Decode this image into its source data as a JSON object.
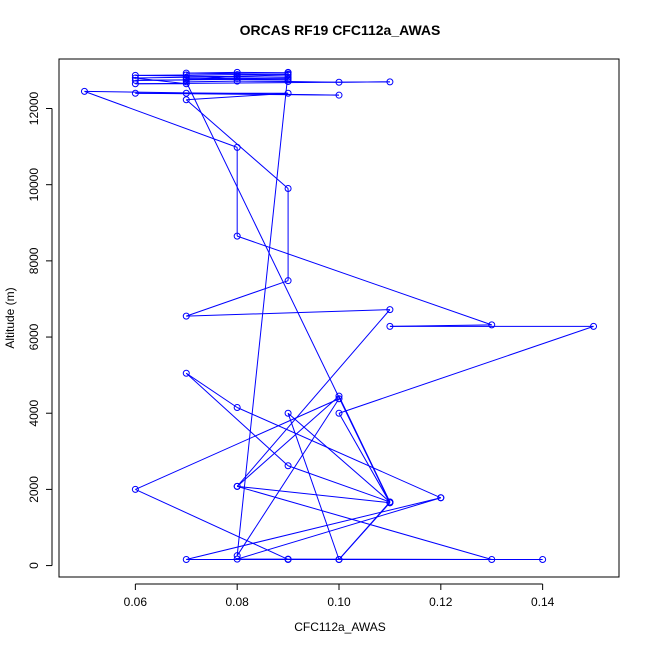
{
  "chart_data": {
    "type": "line",
    "title": "ORCAS RF19 CFC112a_AWAS",
    "xlabel": "CFC112a_AWAS",
    "ylabel": "Altitude (m)",
    "xlim": [
      0.045,
      0.155
    ],
    "ylim": [
      -300,
      13300
    ],
    "x_ticks": [
      0.06,
      0.08,
      0.1,
      0.12,
      0.14
    ],
    "x_tick_labels": [
      "0.06",
      "0.08",
      "0.10",
      "0.12",
      "0.14"
    ],
    "y_ticks": [
      0,
      2000,
      4000,
      6000,
      8000,
      10000,
      12000
    ],
    "y_tick_labels": [
      "0",
      "2000",
      "4000",
      "6000",
      "8000",
      "10000",
      "12000"
    ],
    "grid": false,
    "legend": "none",
    "series": [
      {
        "color": "#0000ff",
        "marker": "open-circle",
        "points": [
          [
            0.14,
            160
          ],
          [
            0.07,
            160
          ],
          [
            0.12,
            1780
          ],
          [
            0.08,
            170
          ],
          [
            0.09,
            170
          ],
          [
            0.13,
            160
          ],
          [
            0.08,
            2080
          ],
          [
            0.11,
            1650
          ],
          [
            0.1,
            4000
          ],
          [
            0.15,
            6280
          ],
          [
            0.11,
            6280
          ],
          [
            0.13,
            6320
          ],
          [
            0.08,
            8650
          ],
          [
            0.08,
            10980
          ],
          [
            0.05,
            12450
          ],
          [
            0.1,
            12350
          ],
          [
            0.06,
            12400
          ],
          [
            0.07,
            12400
          ],
          [
            0.09,
            12400
          ],
          [
            0.07,
            12230
          ],
          [
            0.09,
            9900
          ],
          [
            0.09,
            7480
          ],
          [
            0.07,
            6550
          ],
          [
            0.11,
            6720
          ],
          [
            0.08,
            2080
          ],
          [
            0.1,
            4450
          ],
          [
            0.11,
            1670
          ],
          [
            0.09,
            4000
          ],
          [
            0.1,
            160
          ],
          [
            0.11,
            1650
          ],
          [
            0.07,
            12700
          ],
          [
            0.08,
            12720
          ],
          [
            0.09,
            12710
          ],
          [
            0.1,
            12690
          ],
          [
            0.11,
            12700
          ],
          [
            0.06,
            12650
          ],
          [
            0.07,
            12650
          ],
          [
            0.06,
            12800
          ],
          [
            0.07,
            12820
          ],
          [
            0.08,
            12830
          ],
          [
            0.09,
            12820
          ],
          [
            0.06,
            12870
          ],
          [
            0.07,
            12880
          ],
          [
            0.08,
            12890
          ],
          [
            0.09,
            12900
          ],
          [
            0.07,
            12930
          ],
          [
            0.08,
            12950
          ],
          [
            0.09,
            12940
          ],
          [
            0.09,
            12880
          ],
          [
            0.08,
            12850
          ],
          [
            0.07,
            12750
          ],
          [
            0.06,
            12740
          ],
          [
            0.09,
            12780
          ],
          [
            0.08,
            12790
          ],
          [
            0.07,
            12780
          ],
          [
            0.09,
            12750
          ],
          [
            0.09,
            12950
          ],
          [
            0.08,
            260
          ],
          [
            0.1,
            4380
          ],
          [
            0.06,
            2000
          ],
          [
            0.09,
            160
          ],
          [
            0.1,
            160
          ],
          [
            0.11,
            1670
          ],
          [
            0.09,
            2620
          ],
          [
            0.07,
            5050
          ],
          [
            0.08,
            4150
          ],
          [
            0.12,
            1780
          ]
        ]
      }
    ]
  }
}
